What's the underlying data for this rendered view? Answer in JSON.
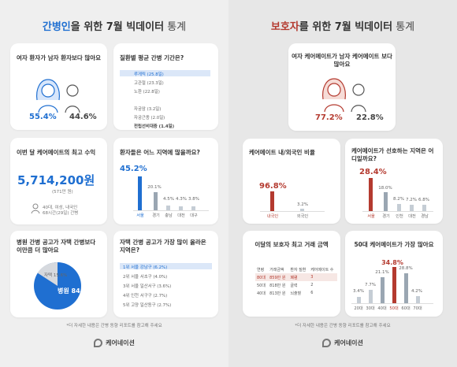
{
  "left": {
    "title_a": "간병인",
    "title_b": "을 위한 ",
    "title_c": "7월 빅데이터",
    "title_d": " 통계",
    "cards": {
      "gender": {
        "title": "여자 환자가 남자 환자보다 많아요",
        "female": "55.4%",
        "male": "44.6%"
      },
      "period": {
        "title": "질환별 평균 간병 기간은?",
        "items": [
          "루게릭 (25.8일)",
          "고관절 (23.3일)",
          "노환 (22.8일)",
          "",
          "자궁암 (3.2일)",
          "자궁근종 (2.0일)",
          "전립선비대증 (1.4일)"
        ]
      },
      "income": {
        "title": "이번 달 케어메이트의 최고 수익",
        "amount": "5,714,200원",
        "sub": "(571만 원)",
        "detail": "40대, 여성, 내국인\n68시간(29일) 간병"
      },
      "region": {
        "title": "환자들은 어느 지역에 많을까요?",
        "pct_main": "45.2%",
        "pct_2": "20.1%",
        "pct_3": "4.5%",
        "pct_4": "4.3%",
        "pct_5": "3.8%",
        "labels": [
          "서울",
          "경기",
          "충남",
          "대전",
          "대구"
        ]
      },
      "proposal": {
        "title": "병원 간병 공고가 자택 간병보다 이만큼 더 많아요",
        "home": "자택 15.6%",
        "hospital": "병원 84.4%"
      },
      "jobs": {
        "title": "자택 간병 공고가 가장 많이 올라온 지역은?",
        "items": [
          "1위 서울 강남구 (6.2%)",
          "2위 서울 서초구 (4.0%)",
          "3위 서울 일산서구 (3.6%)",
          "4위 인천 서구구 (2.7%)",
          "5위 고양 일산동구 (2.7%)"
        ]
      }
    },
    "footnote": "*더 자세한 내용은 간병 동향 리포트를 참고해 주세요",
    "logo": "케어네이션"
  },
  "right": {
    "title_a": "보호자",
    "title_b": "를 위한 ",
    "title_c": "7월 빅데이터",
    "title_d": " 통계",
    "cards": {
      "caregiver": {
        "title": "여자 케어메이트가 남자 케어메이트 보다 많아요",
        "female": "77.2%",
        "male": "22.8%"
      },
      "nationality": {
        "title": "케어메이트 내/외국인 비율",
        "domestic": "96.8%",
        "foreign": "3.2%",
        "labels": [
          "내국인",
          "외국인"
        ]
      },
      "preferred": {
        "title": "케어메이트가 선호하는 지역은 어디일까요?",
        "pct_main": "28.4%",
        "pct_2": "18.0%",
        "pct_3": "8.2%",
        "pct_4": "7.2%",
        "pct_5": "6.8%",
        "labels": [
          "서울",
          "경기",
          "인천",
          "대전",
          "경남"
        ]
      },
      "deal": {
        "title": "이달의 보호자 최고 거래 금액",
        "headers": [
          "연령",
          "거래금액",
          "환자 질환",
          "케어메이트 수"
        ],
        "rows": [
          [
            "80대",
            "859만 원",
            "폐렴",
            "3"
          ],
          [
            "50대",
            "818만 원",
            "골력",
            "2"
          ],
          [
            "40대",
            "813만 원",
            "뇌출혈",
            "6"
          ]
        ]
      },
      "age": {
        "title": "50대 케어메이트가 가장 많아요",
        "values": [
          "3.4%",
          "7.7%",
          "21.1%",
          "34.8%",
          "28.8%",
          "4.2%"
        ],
        "labels": [
          "20대",
          "30대",
          "40대",
          "50대",
          "60대",
          "70대"
        ]
      }
    },
    "footnote": "*더 자세한 내용은 간병 동향 리포트를 참고해 주세요",
    "logo": "케어네이션"
  }
}
